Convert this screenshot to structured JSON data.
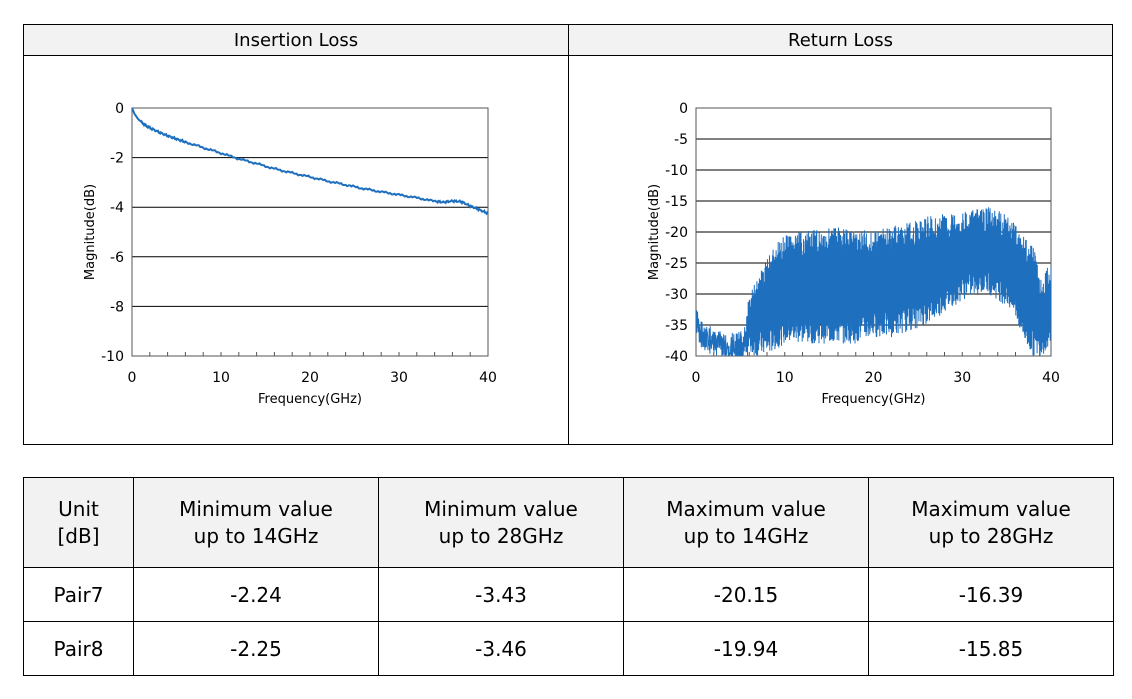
{
  "panels": {
    "insertion": {
      "title": "Insertion Loss"
    },
    "return": {
      "title": "Return Loss"
    }
  },
  "chart_data": [
    {
      "type": "line",
      "title": "Insertion Loss",
      "xlabel": "Frequency(GHz)",
      "ylabel": "Magnitude(dB)",
      "xlim": [
        0,
        40
      ],
      "ylim": [
        -10,
        0
      ],
      "xticks": [
        0,
        10,
        20,
        30,
        40
      ],
      "yticks": [
        0,
        -2,
        -4,
        -6,
        -8,
        -10
      ],
      "grid": "horizontal",
      "color": "#1f6fbf",
      "series": [
        {
          "x": [
            0,
            0.3,
            0.7,
            1,
            1.5,
            2,
            3,
            4,
            5,
            6,
            8,
            10,
            12,
            14,
            16,
            18,
            20,
            22,
            24,
            26,
            28,
            30,
            32,
            34,
            35,
            36,
            37,
            38,
            39,
            40
          ],
          "y": [
            0,
            -0.25,
            -0.45,
            -0.55,
            -0.7,
            -0.8,
            -0.97,
            -1.12,
            -1.25,
            -1.37,
            -1.6,
            -1.82,
            -2.05,
            -2.24,
            -2.45,
            -2.62,
            -2.78,
            -2.95,
            -3.1,
            -3.25,
            -3.38,
            -3.5,
            -3.62,
            -3.76,
            -3.8,
            -3.75,
            -3.78,
            -3.95,
            -4.1,
            -4.25
          ]
        }
      ]
    },
    {
      "type": "line",
      "title": "Return Loss",
      "xlabel": "Frequency(GHz)",
      "ylabel": "Magnitude(dB)",
      "xlim": [
        0,
        40
      ],
      "ylim": [
        -40,
        0
      ],
      "xticks": [
        0,
        10,
        20,
        30,
        40
      ],
      "yticks": [
        0,
        -5,
        -10,
        -15,
        -20,
        -25,
        -30,
        -35,
        -40
      ],
      "grid": "horizontal",
      "color": "#1f6fbf",
      "envelope": {
        "x": [
          0,
          1,
          2,
          3,
          4,
          5,
          6,
          7,
          8,
          9,
          10,
          12,
          14,
          16,
          18,
          20,
          22,
          24,
          26,
          28,
          30,
          32,
          33,
          34,
          35,
          36,
          37,
          38,
          39,
          40
        ],
        "upper": [
          -32,
          -35,
          -35,
          -37,
          -38,
          -40,
          -30,
          -27,
          -24,
          -22,
          -20.5,
          -20,
          -19.5,
          -19,
          -19.5,
          -19.8,
          -19,
          -18.5,
          -17.5,
          -17,
          -16.7,
          -16.2,
          -16,
          -16.5,
          -17,
          -18.5,
          -20.5,
          -22,
          -28,
          -24
        ],
        "lower": [
          -37,
          -40,
          -40,
          -40,
          -40,
          -40,
          -40,
          -40,
          -40,
          -39,
          -38,
          -38,
          -38,
          -38,
          -38,
          -37,
          -37,
          -36,
          -35,
          -33,
          -31,
          -30,
          -30,
          -31,
          -32,
          -34,
          -38,
          -40,
          -40,
          -38
        ]
      }
    }
  ],
  "table": {
    "headers": [
      [
        "Unit",
        "[dB]"
      ],
      [
        "Minimum value",
        "up to 14GHz"
      ],
      [
        "Minimum value",
        "up to 28GHz"
      ],
      [
        "Maximum value",
        "up to 14GHz"
      ],
      [
        "Maximum value",
        "up to 28GHz"
      ]
    ],
    "rows": [
      [
        "Pair7",
        "-2.24",
        "-3.43",
        "-20.15",
        "-16.39"
      ],
      [
        "Pair8",
        "-2.25",
        "-3.46",
        "-19.94",
        "-15.85"
      ]
    ]
  }
}
